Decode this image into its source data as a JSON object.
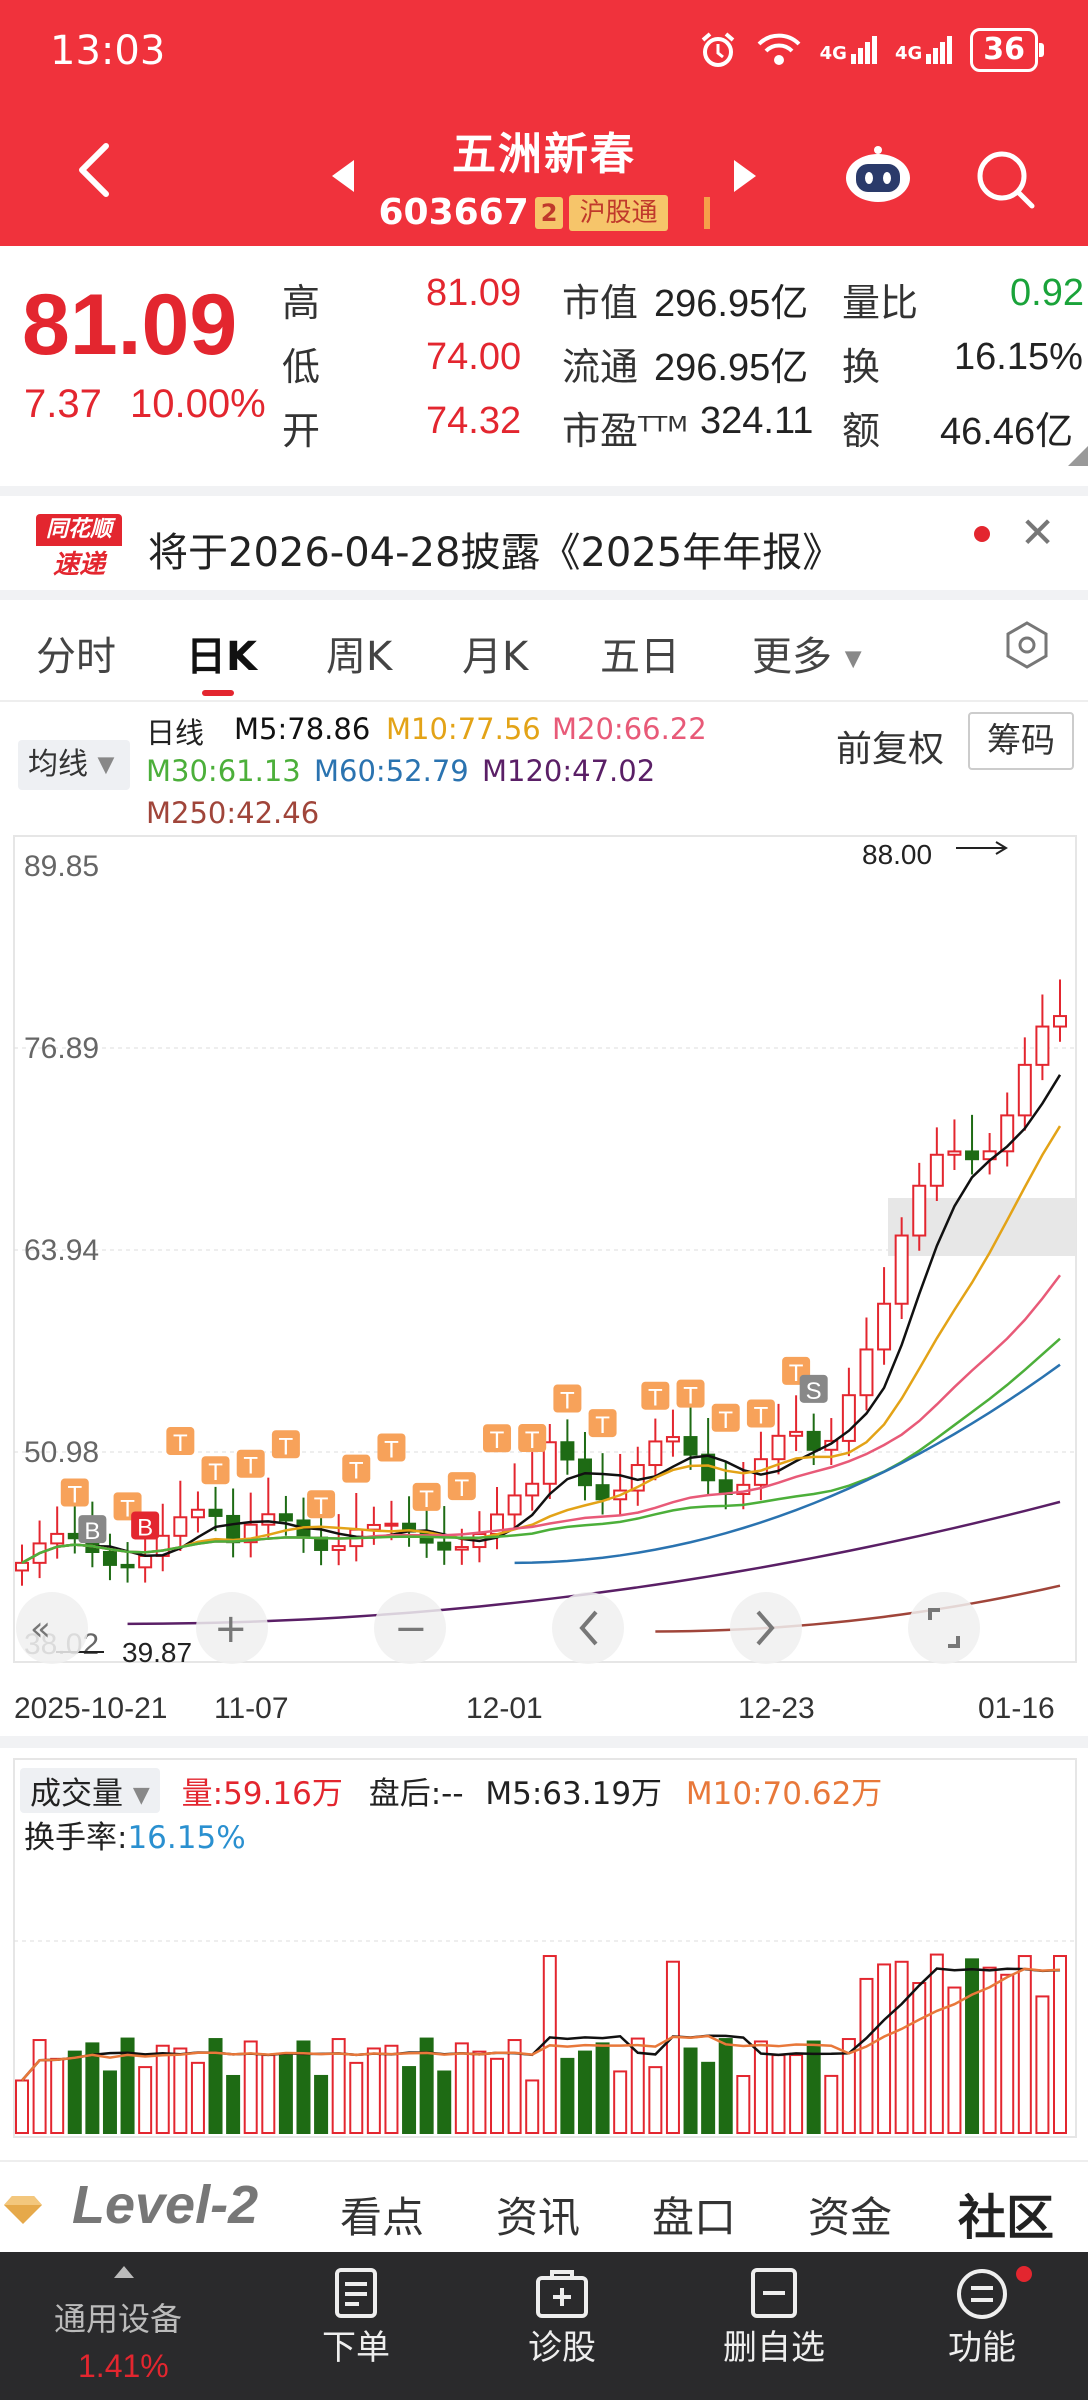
{
  "status_bar": {
    "time": "13:03",
    "network": "4G",
    "network2": "4G",
    "battery": "36"
  },
  "header": {
    "stock_name": "五洲新春",
    "stock_code": "603667",
    "badge_num": "2",
    "badge_market": "沪股通"
  },
  "quote": {
    "price": "81.09",
    "change": "7.37",
    "change_pct": "10.00%",
    "high_label": "高",
    "high": "81.09",
    "low_label": "低",
    "low": "74.00",
    "open_label": "开",
    "open": "74.32",
    "mktcap_label": "市值",
    "mktcap": "296.95亿",
    "float_label": "流通",
    "float": "296.95亿",
    "pe_label": "市盈ᵀᵀᴹ",
    "pe": "324.11",
    "volratio_label": "量比",
    "volratio": "0.92",
    "turnover_label": "换",
    "turnover": "16.15%",
    "amount_label": "额",
    "amount": "46.46亿"
  },
  "news": {
    "logo_top": "同花顺",
    "logo_bottom": "速递",
    "text": "将于2026-04-28披露《2025年年报》"
  },
  "tabs": [
    "分时",
    "日K",
    "周K",
    "月K",
    "五日",
    "更多"
  ],
  "ma": {
    "select": "均线",
    "title": "日线",
    "m5": "M5:78.86",
    "m10": "M10:77.56",
    "m20": "M20:66.22",
    "m30": "M30:61.13",
    "m60": "M60:52.79",
    "m120": "M120:47.02",
    "m250": "M250:42.46",
    "adjust": "前复权",
    "chips": "筹码"
  },
  "kline": {
    "y_ticks": [
      "89.85",
      "76.89",
      "63.94",
      "50.98",
      "38.02"
    ],
    "max_label": "88.00",
    "min_label": "39.87",
    "dates": [
      "2025-10-21",
      "11-07",
      "12-01",
      "12-23",
      "01-16"
    ],
    "marker_b": "B",
    "marker_s": "S",
    "marker_t": "T"
  },
  "volume": {
    "select": "成交量",
    "vol": "量:59.16万",
    "after": "盘后:--",
    "m5": "M5:63.19万",
    "m10": "M10:70.62万",
    "turnover_label": "换手率:",
    "turnover": "16.15%"
  },
  "bottom_tabs": {
    "level2": "Level-2",
    "t1": "看点",
    "t2": "资讯",
    "t3": "盘口",
    "t4": "资金",
    "t5": "社区"
  },
  "bottom_nav": {
    "device": "通用设备",
    "device_pct": "1.41%",
    "order": "下单",
    "diag": "诊股",
    "delete": "删自选",
    "func": "功能"
  },
  "colors": {
    "brand_red": "#f0323c",
    "up": "#e3262f",
    "down": "#1e6b14",
    "m5": "#111111",
    "m10": "#e3a317",
    "m20": "#e85a78",
    "m30": "#4caf3a",
    "m60": "#2a73b0",
    "m120": "#5a1f66",
    "m250": "#a0453a"
  }
}
